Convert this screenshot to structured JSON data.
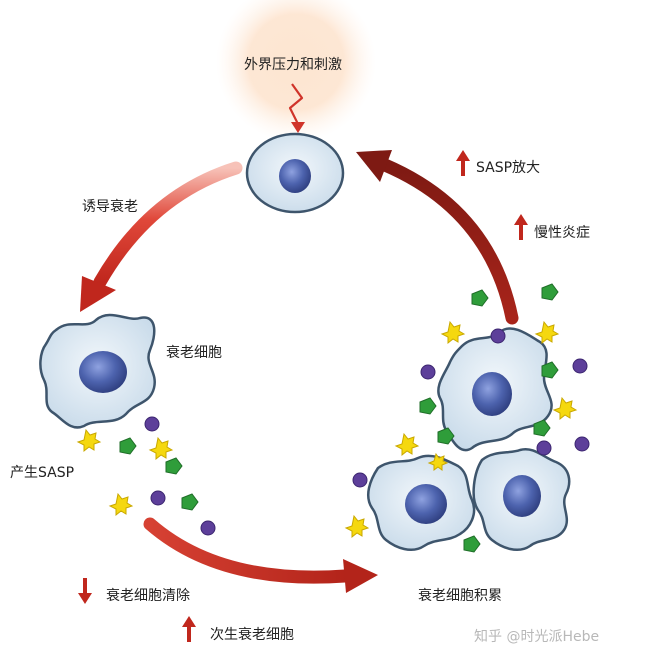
{
  "labels": {
    "stress": "外界压力和刺激",
    "induce": "诱导衰老",
    "senescent_cell": "衰老细胞",
    "produce_sasp": "产生SASP",
    "clearance": "衰老细胞清除",
    "secondary": "次生衰老细胞",
    "accumulate": "衰老细胞积累",
    "sasp_amplify": "SASP放大",
    "chronic_inflammation": "慢性炎症"
  },
  "indicators": {
    "clearance": "down",
    "secondary": "up",
    "sasp_amplify": "up",
    "chronic_inflammation": "up"
  },
  "watermark": "知乎 @时光派Hebe",
  "colors": {
    "arrow_red": "#c0271d",
    "arrow_dark": "#8e1d15",
    "arrow_light": "#f6b2a6",
    "cell_fill": "#dde9f3",
    "cell_stroke": "#3e556c",
    "nucleus": "#4d63ae",
    "glow": "#fde0c6",
    "yellow": "#f5d80f",
    "green": "#2f9d3a",
    "purple": "#5d3f9a"
  }
}
